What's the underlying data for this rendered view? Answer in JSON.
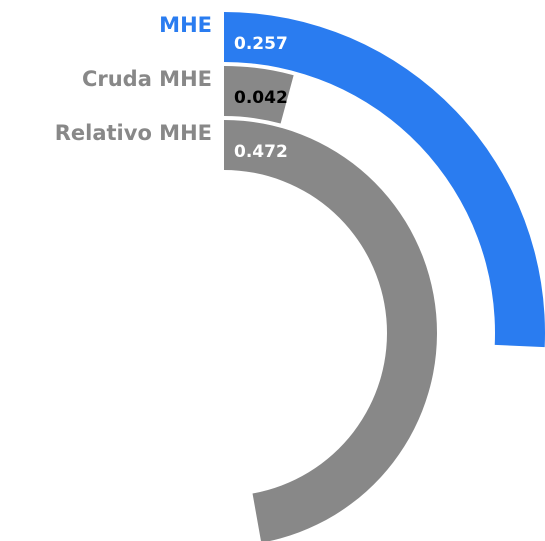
{
  "chart_data": {
    "type": "radial_bar",
    "categories": [
      "MHE",
      "Cruda MHE",
      "Relativo MHE"
    ],
    "values": [
      0.257,
      0.042,
      0.472
    ],
    "colors": [
      "#2a7cf0",
      "#888888",
      "#888888"
    ],
    "value_label_colors": [
      "#ffffff",
      "#000000",
      "#ffffff"
    ]
  }
}
